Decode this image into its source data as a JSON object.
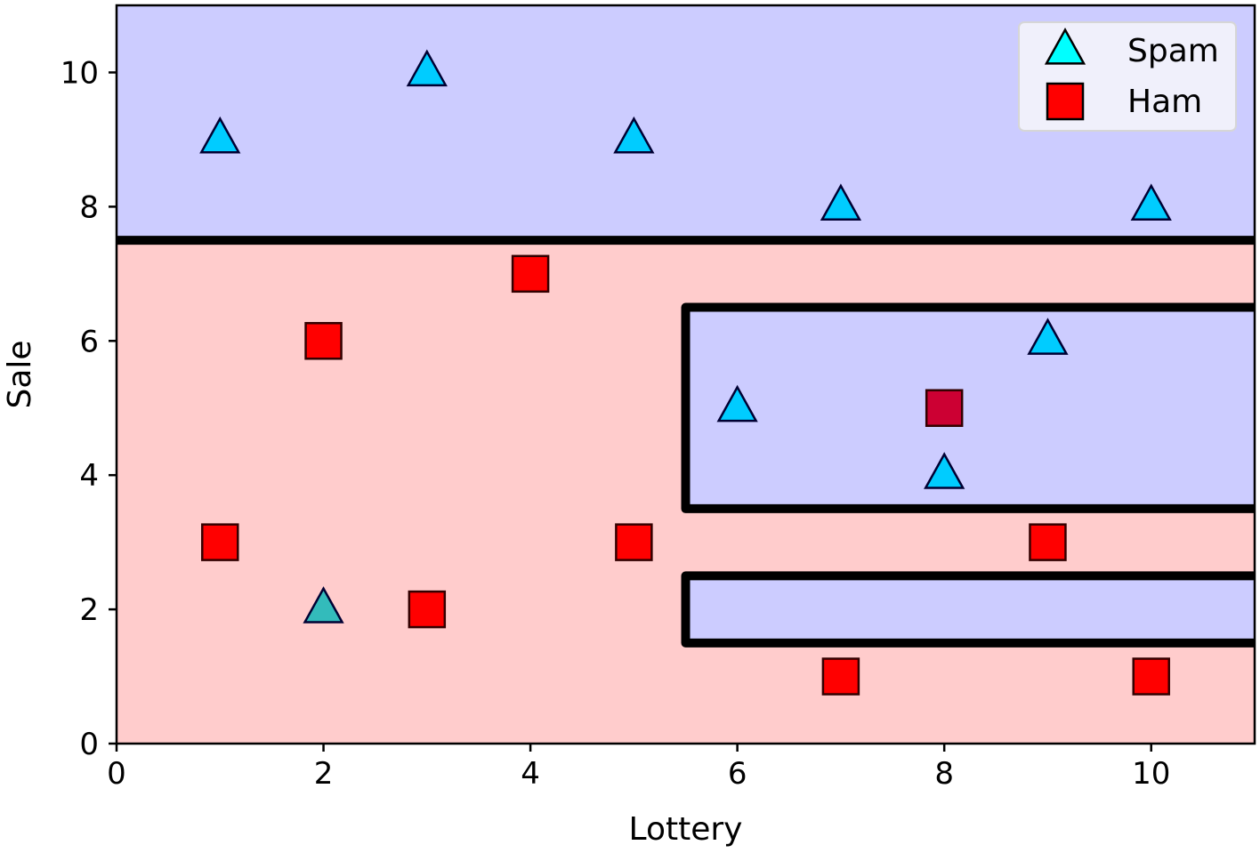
{
  "chart_data": {
    "type": "scatter",
    "title": "",
    "xlabel": "Lottery",
    "ylabel": "Sale",
    "xlim": [
      0,
      11
    ],
    "ylim": [
      0,
      11
    ],
    "x_ticks": [
      0,
      2,
      4,
      6,
      8,
      10
    ],
    "y_ticks": [
      0,
      2,
      4,
      6,
      8,
      10
    ],
    "x_tick_labels": [
      "0",
      "2",
      "4",
      "6",
      "8",
      "10"
    ],
    "y_tick_labels": [
      "0",
      "2",
      "4",
      "6",
      "8",
      "10"
    ],
    "grid": false,
    "legend_position": "top-right",
    "legend": [
      {
        "label": "Spam",
        "marker": "triangle",
        "color": "#00ffff"
      },
      {
        "label": "Ham",
        "marker": "square",
        "color": "#ff0000"
      }
    ],
    "background_regions": [
      {
        "x_range": [
          0,
          11
        ],
        "y_range": [
          0,
          7.5
        ],
        "color": "#ffcccc"
      },
      {
        "x_range": [
          0,
          11
        ],
        "y_range": [
          7.5,
          11
        ],
        "color": "#ccccff"
      },
      {
        "x_range": [
          5.5,
          11
        ],
        "y_range": [
          3.5,
          6.5
        ],
        "color": "#ccccff"
      },
      {
        "x_range": [
          5.5,
          11
        ],
        "y_range": [
          1.5,
          2.5
        ],
        "color": "#ccccff"
      }
    ],
    "boundaries": [
      {
        "points": [
          [
            0,
            7.5
          ],
          [
            11,
            7.5
          ]
        ]
      },
      {
        "points": [
          [
            11,
            6.5
          ],
          [
            5.5,
            6.5
          ],
          [
            5.5,
            3.5
          ],
          [
            11,
            3.5
          ]
        ]
      },
      {
        "points": [
          [
            11,
            2.5
          ],
          [
            5.5,
            2.5
          ],
          [
            5.5,
            1.5
          ],
          [
            11,
            1.5
          ]
        ]
      }
    ],
    "series": [
      {
        "name": "Spam",
        "marker": "triangle",
        "points": [
          {
            "x": 1,
            "y": 9,
            "color": "#00ccff"
          },
          {
            "x": 3,
            "y": 10,
            "color": "#00ccff"
          },
          {
            "x": 5,
            "y": 9,
            "color": "#00ccff"
          },
          {
            "x": 7,
            "y": 8,
            "color": "#00ccff"
          },
          {
            "x": 10,
            "y": 8,
            "color": "#00ccff"
          },
          {
            "x": 9,
            "y": 6,
            "color": "#00ccff"
          },
          {
            "x": 6,
            "y": 5,
            "color": "#00ccff"
          },
          {
            "x": 8,
            "y": 4,
            "color": "#00ccff"
          },
          {
            "x": 2,
            "y": 2,
            "color": "#33bbbb"
          }
        ]
      },
      {
        "name": "Ham",
        "marker": "square",
        "points": [
          {
            "x": 4,
            "y": 7,
            "color": "#ff0000"
          },
          {
            "x": 2,
            "y": 6,
            "color": "#ff0000"
          },
          {
            "x": 8,
            "y": 5,
            "color": "#cc0033"
          },
          {
            "x": 1,
            "y": 3,
            "color": "#ff0000"
          },
          {
            "x": 5,
            "y": 3,
            "color": "#ff0000"
          },
          {
            "x": 9,
            "y": 3,
            "color": "#ff0000"
          },
          {
            "x": 3,
            "y": 2,
            "color": "#ff0000"
          },
          {
            "x": 7,
            "y": 1,
            "color": "#ff0000"
          },
          {
            "x": 10,
            "y": 1,
            "color": "#ff0000"
          }
        ]
      }
    ]
  }
}
